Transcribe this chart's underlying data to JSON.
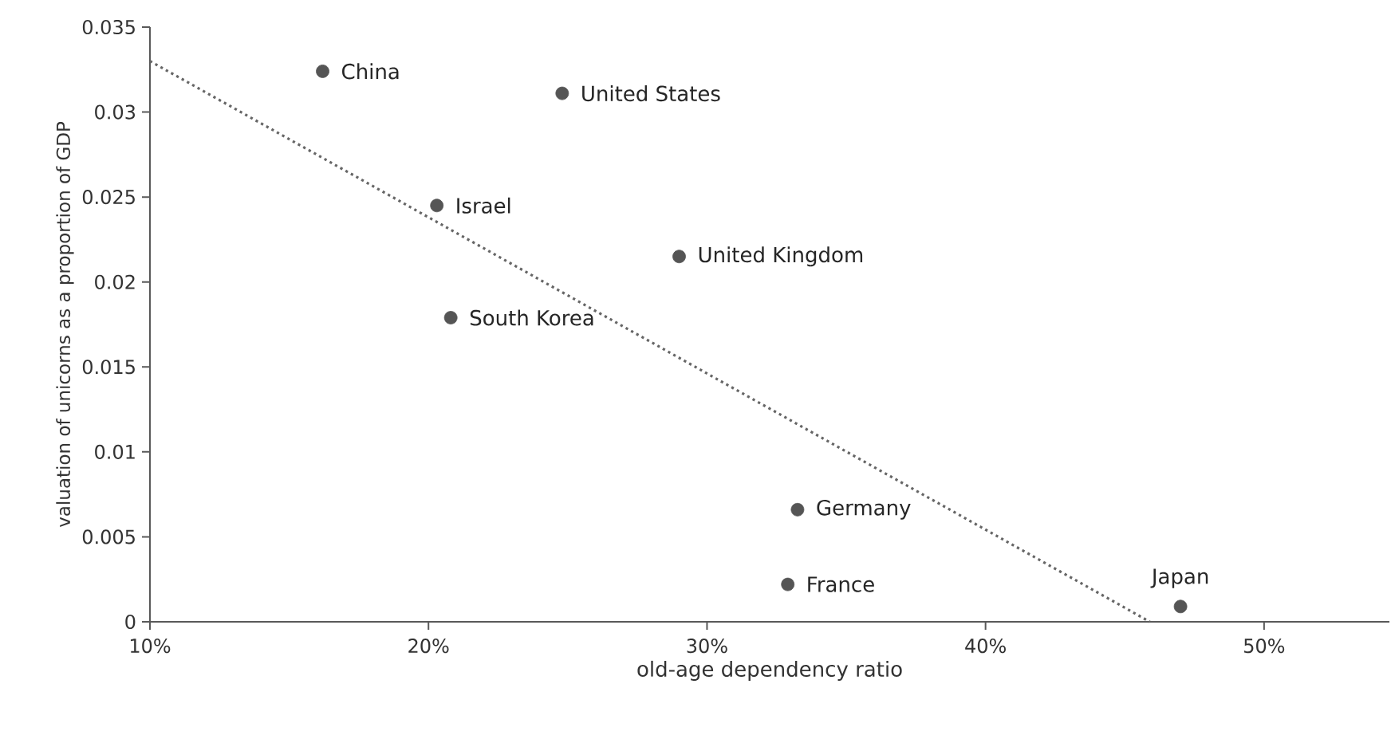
{
  "chart_data": {
    "type": "scatter",
    "xlabel": "old-age dependency ratio",
    "ylabel": "valuation of unicorns as a proportion of GDP",
    "xlim": [
      10,
      54.5
    ],
    "ylim": [
      0,
      0.035
    ],
    "xticks": [
      {
        "value": 10,
        "label": "10%"
      },
      {
        "value": 20,
        "label": "20%"
      },
      {
        "value": 30,
        "label": "30%"
      },
      {
        "value": 40,
        "label": "40%"
      },
      {
        "value": 50,
        "label": "50%"
      }
    ],
    "yticks": [
      0,
      0.005,
      0.01,
      0.015,
      0.02,
      0.025,
      0.03,
      0.035
    ],
    "grid": false,
    "series": [
      {
        "color": "#555555",
        "marker": "circle",
        "x": [
          16.2,
          24.8,
          20.3,
          29.0,
          20.8,
          33.25,
          32.9,
          47.0
        ],
        "values": [
          0.0324,
          0.0311,
          0.0245,
          0.0215,
          0.0179,
          0.0066,
          0.0022,
          0.0009
        ]
      },
      {
        "type": "line",
        "color": "#666666",
        "marker": "none",
        "line_style": "dotted",
        "x": [
          10,
          45.9
        ],
        "values": [
          0.033,
          0
        ]
      }
    ],
    "annotations": [
      {
        "text": "China",
        "x": 16.2,
        "y": 0.0324
      },
      {
        "text": "United States",
        "x": 24.8,
        "y": 0.0311
      },
      {
        "text": "Israel",
        "x": 20.3,
        "y": 0.0245
      },
      {
        "text": "United Kingdom",
        "x": 29.0,
        "y": 0.0215
      },
      {
        "text": "South Korea",
        "x": 20.8,
        "y": 0.0179
      },
      {
        "text": "Germany",
        "x": 33.25,
        "y": 0.0066
      },
      {
        "text": "France",
        "x": 32.9,
        "y": 0.0022
      },
      {
        "text": "Japan",
        "x": 47.0,
        "y": 0.0009
      }
    ]
  }
}
